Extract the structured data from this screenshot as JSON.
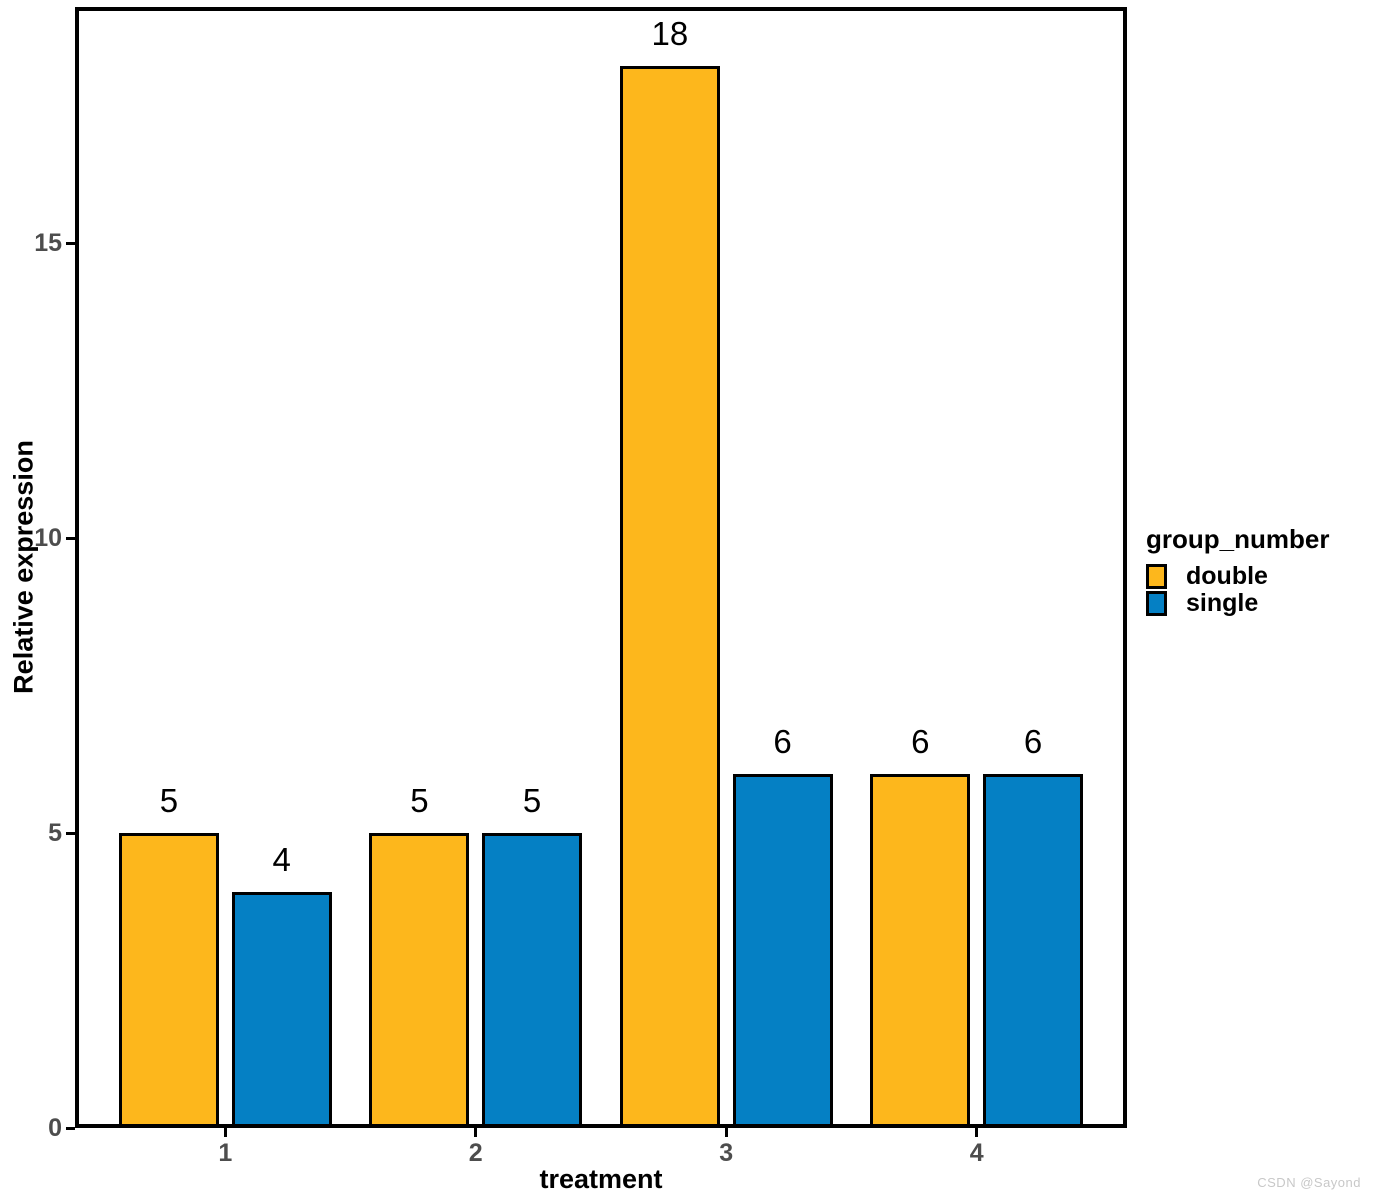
{
  "watermark": "CSDN @Sayond",
  "chart_data": {
    "type": "bar",
    "title": "",
    "xlabel": "treatment",
    "ylabel": "Relative expression",
    "categories": [
      "1",
      "2",
      "3",
      "4"
    ],
    "series": [
      {
        "name": "double",
        "color": "#FDB71C",
        "values": [
          5,
          5,
          18,
          6
        ]
      },
      {
        "name": "single",
        "color": "#0580C4",
        "values": [
          4,
          5,
          6,
          6
        ]
      }
    ],
    "bar_value_labels": [
      [
        5,
        5,
        18,
        6
      ],
      [
        4,
        5,
        6,
        6
      ]
    ],
    "yticks": [
      0,
      5,
      10,
      15
    ],
    "ylim": [
      0,
      19
    ],
    "grid": false,
    "legend_title": "group_number",
    "legend_position": "right",
    "legend_entries": [
      "double",
      "single"
    ],
    "tick_label_color": "#4d4d4d",
    "bar_outline_color": "#000000"
  }
}
